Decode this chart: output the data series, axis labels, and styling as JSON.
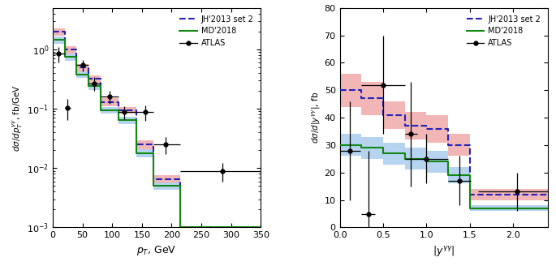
{
  "left_plot": {
    "xlabel": "$p_T$, GeV",
    "ylabel": "$d\\sigma/dp_T^{\\gamma\\gamma}$, fb/GeV",
    "xlim": [
      0,
      350
    ],
    "ylim": [
      0.001,
      5.0
    ],
    "bin_edges": [
      0,
      20,
      40,
      60,
      80,
      110,
      140,
      170,
      215,
      350
    ],
    "JH_bins_y": [
      2.0,
      1.0,
      0.5,
      0.32,
      0.13,
      0.095,
      0.025,
      0.0065,
      0.001
    ],
    "JH_err_lo": [
      1.7,
      0.85,
      0.43,
      0.27,
      0.11,
      0.082,
      0.021,
      0.0055,
      0.001
    ],
    "JH_err_hi": [
      2.3,
      1.15,
      0.57,
      0.37,
      0.15,
      0.108,
      0.029,
      0.0075,
      0.001
    ],
    "MD_bins_y": [
      1.45,
      0.75,
      0.38,
      0.24,
      0.095,
      0.065,
      0.018,
      0.005,
      0.001
    ],
    "MD_err_lo": [
      1.25,
      0.65,
      0.33,
      0.21,
      0.082,
      0.056,
      0.015,
      0.0043,
      0.001
    ],
    "MD_err_hi": [
      1.65,
      0.85,
      0.43,
      0.27,
      0.108,
      0.074,
      0.021,
      0.0057,
      0.001
    ],
    "atlas_x": [
      10,
      25,
      50,
      70,
      95,
      120,
      155,
      190,
      285
    ],
    "atlas_xerr_lo": [
      10,
      5,
      10,
      10,
      15,
      10,
      15,
      20,
      70
    ],
    "atlas_xerr_hi": [
      10,
      5,
      10,
      10,
      15,
      20,
      15,
      25,
      65
    ],
    "atlas_y": [
      0.85,
      0.105,
      0.55,
      0.27,
      0.16,
      0.088,
      0.088,
      0.025,
      0.009
    ],
    "atlas_yerr_lo": [
      0.25,
      0.04,
      0.12,
      0.07,
      0.04,
      0.022,
      0.025,
      0.008,
      0.003
    ],
    "atlas_yerr_hi": [
      0.25,
      0.04,
      0.12,
      0.07,
      0.04,
      0.022,
      0.025,
      0.008,
      0.003
    ]
  },
  "right_plot": {
    "xlabel": "$|y^{\\gamma\\gamma}|$",
    "ylabel": "$d\\sigma/d|y^{\\gamma\\gamma}|$, fb",
    "xlim": [
      0,
      2.4
    ],
    "ylim": [
      0,
      80
    ],
    "bin_edges": [
      0,
      0.25,
      0.5,
      0.75,
      1.0,
      1.25,
      1.5,
      2.5
    ],
    "JH_bins_y": [
      50,
      47,
      41,
      37,
      36,
      30,
      12
    ],
    "JH_err_lo": [
      44,
      41,
      36,
      32,
      31,
      26,
      10
    ],
    "JH_err_hi": [
      56,
      53,
      46,
      42,
      41,
      34,
      14
    ],
    "MD_bins_y": [
      30,
      29,
      27,
      25,
      24,
      19,
      7
    ],
    "MD_err_lo": [
      26,
      25,
      23,
      21,
      20,
      16,
      6
    ],
    "MD_err_hi": [
      34,
      33,
      31,
      29,
      28,
      22,
      8
    ],
    "atlas_x": [
      0.12,
      0.33,
      0.5,
      0.82,
      1.0,
      1.38,
      2.05
    ],
    "atlas_xerr_lo": [
      0.12,
      0.08,
      0.25,
      0.07,
      0.25,
      0.13,
      0.45
    ],
    "atlas_xerr_hi": [
      0.12,
      0.08,
      0.25,
      0.07,
      0.25,
      0.13,
      0.45
    ],
    "atlas_y": [
      28,
      5,
      52,
      34,
      25,
      17,
      13
    ],
    "atlas_yerr_lo": [
      18,
      23,
      18,
      19,
      9,
      9,
      7
    ],
    "atlas_yerr_hi": [
      18,
      23,
      18,
      19,
      9,
      9,
      7
    ]
  },
  "colors": {
    "JH_line": "#2222bb",
    "JH_fill": "#f0aaaa",
    "MD_line": "#118811",
    "MD_fill": "#aaccee",
    "atlas_marker": "black"
  }
}
